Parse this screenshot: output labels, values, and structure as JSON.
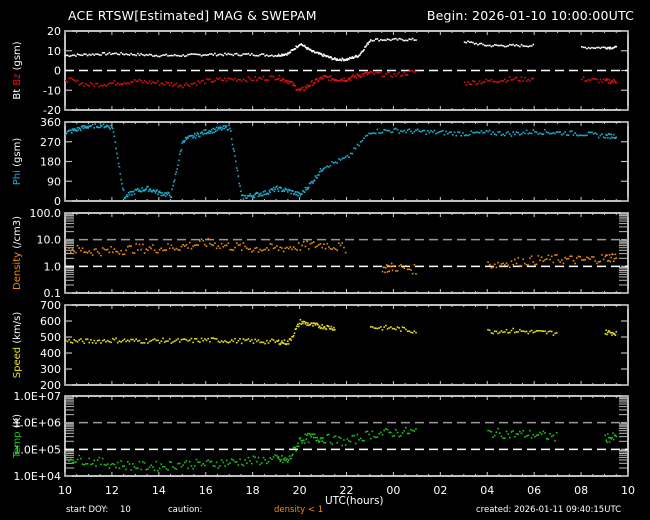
{
  "header": {
    "title": "ACE RTSW[Estimated] MAG & SWEPAM",
    "begin": "Begin: 2026-01-10 10:00:00UTC"
  },
  "footer": {
    "start_doy_label": "start DOY:",
    "start_doy_value": "10",
    "caution_label": "caution:",
    "caution_value": "density < 1",
    "xlabel": "UTC(hours)",
    "created": "created: 2026-01-11 09:40:15UTC"
  },
  "colors": {
    "bt": "#ffffff",
    "bz": "#e01010",
    "phi": "#20b0d0",
    "density": "#f08c10",
    "speed": "#e8e020",
    "temp": "#20c020",
    "axis": "#ffffff"
  },
  "chart_data": [
    {
      "type": "scatter",
      "title": "Bt / Bz (gsm)",
      "ylabel_parts": [
        "Bt",
        "Bz",
        "(gsm)"
      ],
      "yticks": [
        20,
        10,
        0,
        -10,
        -20
      ],
      "ylim": [
        -20,
        20
      ],
      "yscale": "linear",
      "refline": [
        0
      ],
      "x": [
        10,
        11,
        12,
        13,
        14,
        15,
        16,
        17,
        18,
        19,
        19.5,
        20,
        20.5,
        21,
        21.5,
        22,
        22.5,
        23,
        24,
        25,
        26,
        27,
        28,
        29,
        30,
        31,
        32,
        33,
        33.5
      ],
      "series": [
        {
          "name": "Bt",
          "values": [
            8,
            8.5,
            9,
            8.5,
            8,
            8,
            8.5,
            8.5,
            8.5,
            8,
            9,
            14,
            10,
            8,
            6,
            6,
            8,
            16,
            16,
            16,
            null,
            15,
            13,
            13,
            13,
            null,
            12,
            12,
            12
          ]
        },
        {
          "name": "Bz",
          "values": [
            -4,
            -7,
            -6,
            -5,
            -6,
            -7,
            -5,
            -4,
            -4,
            -3,
            -5,
            -10,
            -6,
            -3,
            -4,
            -4,
            -2,
            -1,
            -2,
            0,
            null,
            -6,
            -5,
            -4,
            -4,
            null,
            -4,
            -5,
            -5
          ]
        }
      ]
    },
    {
      "type": "scatter",
      "title": "Phi (gsm)",
      "ylabel_parts": [
        "Phi",
        "(gsm)"
      ],
      "yticks": [
        360,
        270,
        180,
        90,
        0
      ],
      "ylim": [
        0,
        360
      ],
      "yscale": "linear",
      "x": [
        10,
        10.5,
        11,
        11.5,
        12,
        12.5,
        13,
        13.5,
        14,
        14.5,
        15,
        15.5,
        16,
        16.5,
        17,
        17.5,
        18,
        18.5,
        19,
        19.5,
        20,
        20.5,
        21,
        22,
        23,
        24,
        25,
        26,
        27,
        28,
        29,
        30,
        31,
        32,
        33,
        33.5
      ],
      "series": [
        {
          "name": "Phi",
          "values": [
            315,
            330,
            345,
            350,
            340,
            20,
            50,
            60,
            40,
            30,
            280,
            300,
            320,
            330,
            340,
            20,
            30,
            40,
            60,
            50,
            30,
            90,
            160,
            200,
            320,
            325,
            320,
            315,
            310,
            315,
            310,
            320,
            315,
            310,
            300,
            300
          ]
        }
      ]
    },
    {
      "type": "scatter",
      "title": "Density (/cm3)",
      "ylabel_parts": [
        "Density",
        "(/cm3)"
      ],
      "yticks": [
        "100.0",
        "10.0",
        "1.0",
        "0.1"
      ],
      "ylim": [
        0.1,
        100
      ],
      "yscale": "log",
      "refline": [
        10,
        1
      ],
      "x": [
        10,
        11,
        12,
        13,
        14,
        15,
        16,
        17,
        18,
        19,
        20,
        21,
        22,
        22.5,
        23.5,
        24,
        25,
        26,
        28,
        29,
        30,
        31,
        32,
        33,
        33.5
      ],
      "series": [
        {
          "name": "Density",
          "values": [
            5,
            4,
            4,
            5,
            5,
            6,
            8,
            6,
            5,
            5,
            6,
            7,
            5,
            null,
            0.9,
            1.0,
            0.8,
            null,
            1.2,
            1.5,
            1.8,
            2.0,
            1.8,
            2.2,
            2.5
          ]
        }
      ]
    },
    {
      "type": "scatter",
      "title": "Speed (km/s)",
      "ylabel_parts": [
        "Speed",
        "(km/s)"
      ],
      "yticks": [
        700,
        600,
        500,
        400,
        300,
        200
      ],
      "ylim": [
        200,
        700
      ],
      "yscale": "linear",
      "x": [
        10,
        11,
        12,
        13,
        14,
        15,
        16,
        17,
        18,
        19,
        19.5,
        20,
        20.5,
        21,
        21.5,
        22,
        23,
        24,
        25,
        26,
        28,
        29,
        30,
        31,
        32,
        33,
        33.5
      ],
      "series": [
        {
          "name": "Speed",
          "values": [
            480,
            478,
            485,
            480,
            482,
            480,
            486,
            482,
            478,
            475,
            470,
            600,
            580,
            570,
            560,
            null,
            565,
            560,
            540,
            null,
            540,
            545,
            535,
            530,
            null,
            535,
            530
          ]
        }
      ]
    },
    {
      "type": "scatter",
      "title": "Temp (K)",
      "ylabel_parts": [
        "Temp",
        "(K)"
      ],
      "yticks": [
        "1.0E+07",
        "1.0E+06",
        "1.0E+05",
        "1.0E+04"
      ],
      "ylim": [
        10000,
        10000000
      ],
      "yscale": "log",
      "refline": [
        1000000,
        100000
      ],
      "x": [
        10,
        11,
        12,
        13,
        14,
        15,
        16,
        17,
        18,
        19,
        19.5,
        20,
        20.5,
        21,
        22,
        23,
        24,
        25,
        26,
        28,
        29,
        30,
        31,
        32,
        33,
        33.5
      ],
      "series": [
        {
          "name": "Temp",
          "values": [
            50000,
            40000,
            30000,
            25000,
            25000,
            30000,
            30000,
            35000,
            40000,
            45000,
            40000,
            250000,
            300000,
            280000,
            200000,
            400000,
            450000,
            500000,
            null,
            450000,
            400000,
            380000,
            300000,
            null,
            300000,
            280000
          ]
        }
      ]
    }
  ],
  "xaxis": {
    "ticks": [
      "10",
      "12",
      "14",
      "16",
      "18",
      "20",
      "22",
      "00",
      "02",
      "04",
      "06",
      "08",
      "10"
    ],
    "range_hours": [
      10,
      34
    ]
  }
}
